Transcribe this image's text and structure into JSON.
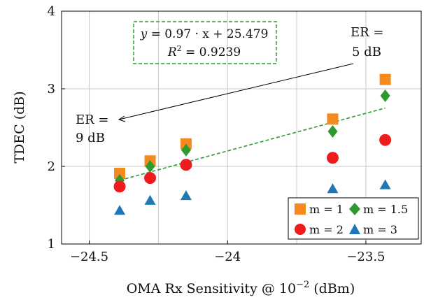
{
  "chart_data": {
    "type": "scatter",
    "title": "",
    "xlabel_prefix": "OMA Rx Sensitivity @ 10",
    "xlabel_exp": "−2",
    "xlabel_suffix": " (dBm)",
    "ylabel": "TDEC (dB)",
    "xlim": [
      -24.6,
      -23.3
    ],
    "ylim": [
      1,
      4
    ],
    "x_ticks": [
      -24.5,
      -24,
      -23.5
    ],
    "x_tick_labels": [
      "−24.5",
      "−24",
      "−23.5"
    ],
    "y_ticks": [
      1,
      2,
      3,
      4
    ],
    "y_tick_labels": [
      "1",
      "2",
      "3",
      "4"
    ],
    "x_minor_gridlines": [
      -24.25,
      -23.75
    ],
    "grid": true,
    "legend_position": "bottom-right",
    "x": [
      -24.39,
      -24.28,
      -24.15,
      -23.62,
      -23.43
    ],
    "series": [
      {
        "name": "m = 1",
        "marker": "square",
        "color": "#f58a1f",
        "values": [
          1.91,
          2.07,
          2.29,
          2.61,
          3.12
        ]
      },
      {
        "name": "m = 1.5",
        "marker": "diamond",
        "color": "#2e9a2e",
        "values": [
          1.82,
          2.0,
          2.21,
          2.45,
          2.91
        ]
      },
      {
        "name": "m = 2",
        "marker": "circle",
        "color": "#ee1c1c",
        "values": [
          1.74,
          1.85,
          2.02,
          2.11,
          2.34
        ]
      },
      {
        "name": "m = 3",
        "marker": "triangle",
        "color": "#1f77b4",
        "values": [
          1.43,
          1.56,
          1.62,
          1.71,
          1.76
        ]
      }
    ],
    "fit": {
      "slope": 0.97,
      "intercept": 25.479,
      "x_range": [
        -24.39,
        -23.43
      ],
      "color": "#2e9a2e",
      "equation_lhs": "y",
      "equation_rhs": " = 0.97 · x + 25.479",
      "r2_lhs": "R",
      "r2_rhs": " = 0.9239"
    },
    "annotations": {
      "er_left_line1": "ER =",
      "er_left_line2": "9 dB",
      "er_right_line1": "ER =",
      "er_right_line2": "5 dB"
    }
  }
}
